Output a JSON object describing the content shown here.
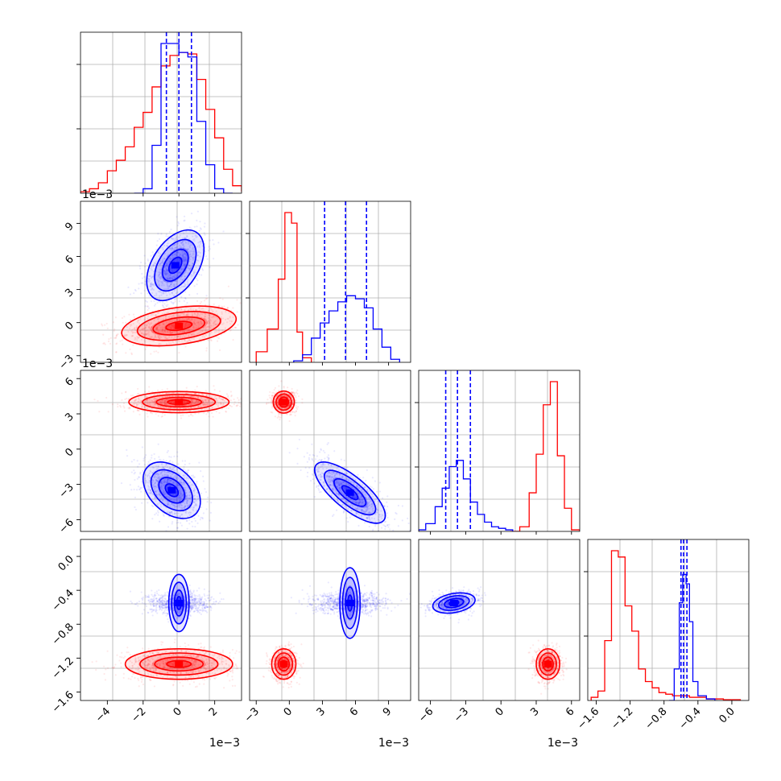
{
  "chart_data": {
    "type": "corner",
    "series": [
      {
        "name": "",
        "color": "#ff0000"
      },
      {
        "name": "",
        "color": "#0000ff"
      }
    ],
    "parameters": [
      {
        "ticks": [
          -4,
          -2,
          0,
          2
        ],
        "tick_labels": [
          "−4",
          "−2",
          "0",
          "2"
        ],
        "range": [
          -5.5,
          3.5
        ],
        "multiplier": "1e−3"
      },
      {
        "ticks": [
          -3,
          0,
          3,
          6,
          9
        ],
        "tick_labels": [
          "−3",
          "0",
          "3",
          "6",
          "9"
        ],
        "range": [
          -3.6,
          11.0
        ],
        "multiplier": "1e−3"
      },
      {
        "ticks": [
          -6,
          -3,
          0,
          3,
          6
        ],
        "tick_labels": [
          "−6",
          "−3",
          "0",
          "3",
          "6"
        ],
        "range": [
          -7.0,
          6.7
        ],
        "multiplier": "1e−3"
      },
      {
        "ticks": [
          -1.6,
          -1.2,
          -0.8,
          -0.4,
          0.0
        ],
        "tick_labels": [
          "−1.6",
          "−1.2",
          "−0.8",
          "−0.4",
          "0.0"
        ],
        "range": [
          -1.7,
          0.2
        ],
        "multiplier": ""
      }
    ],
    "marginals": [
      {
        "param": 0,
        "quantile_lines": {
          "color": "#0000ff",
          "values": [
            -0.7,
            0.0,
            0.7
          ]
        },
        "red": {
          "edges": [
            -5.5,
            -5.0,
            -4.5,
            -4.0,
            -3.5,
            -3.0,
            -2.5,
            -2.0,
            -1.5,
            -1.0,
            -0.5,
            0.0,
            0.5,
            1.0,
            1.5,
            2.0,
            2.5,
            3.0,
            3.5
          ],
          "counts": [
            0.01,
            0.03,
            0.07,
            0.15,
            0.22,
            0.31,
            0.44,
            0.54,
            0.71,
            0.85,
            0.92,
            0.94,
            0.93,
            0.76,
            0.56,
            0.37,
            0.16,
            0.05,
            0.01
          ]
        },
        "blue": {
          "edges": [
            -2.5,
            -2.0,
            -1.5,
            -1.0,
            -0.5,
            0.0,
            0.5,
            1.0,
            1.5,
            2.0,
            2.5,
            3.0
          ],
          "counts": [
            0.0,
            0.03,
            0.32,
            1.0,
            1.0,
            0.94,
            0.91,
            0.48,
            0.19,
            0.03,
            0.0
          ]
        }
      },
      {
        "param": 1,
        "quantile_lines": {
          "color": "#0000ff",
          "values": [
            3.2,
            5.1,
            7.0
          ]
        },
        "red": {
          "edges": [
            -3.0,
            -2.0,
            -1.0,
            -0.4,
            0.2,
            0.7,
            1.2,
            2.0
          ],
          "counts": [
            0.07,
            0.22,
            0.55,
            0.99,
            0.92,
            0.2,
            0.03
          ]
        },
        "blue": {
          "edges": [
            0.4,
            1.2,
            2.0,
            2.8,
            3.6,
            4.4,
            5.2,
            6.0,
            6.8,
            7.6,
            8.4,
            9.2,
            10.0
          ],
          "counts": [
            0.01,
            0.05,
            0.16,
            0.26,
            0.34,
            0.4,
            0.44,
            0.42,
            0.36,
            0.22,
            0.1,
            0.02
          ]
        }
      },
      {
        "param": 2,
        "quantile_lines": {
          "color": "#0000ff",
          "values": [
            -4.7,
            -3.7,
            -2.6
          ]
        },
        "red": {
          "edges": [
            0.8,
            1.6,
            2.4,
            3.0,
            3.6,
            4.2,
            4.8,
            5.4,
            6.0,
            6.7
          ],
          "counts": [
            0.0,
            0.03,
            0.25,
            0.5,
            0.82,
            0.97,
            0.49,
            0.15,
            0.01
          ]
        },
        "blue": {
          "edges": [
            -7.0,
            -6.4,
            -5.6,
            -5.0,
            -4.4,
            -3.8,
            -3.2,
            -2.6,
            -2.0,
            -1.4,
            -0.8,
            -0.2,
            0.4,
            1.0
          ],
          "counts": [
            0.01,
            0.05,
            0.16,
            0.28,
            0.42,
            0.46,
            0.34,
            0.19,
            0.11,
            0.06,
            0.03,
            0.02,
            0.01
          ]
        }
      },
      {
        "param": 3,
        "quantile_lines": {
          "color": "#0000ff",
          "values": [
            -0.6,
            -0.57,
            -0.53
          ]
        },
        "red": {
          "edges": [
            -1.66,
            -1.58,
            -1.5,
            -1.42,
            -1.34,
            -1.26,
            -1.18,
            -1.1,
            -1.02,
            -0.94,
            -0.86,
            -0.78,
            -0.7,
            -0.5,
            -0.3,
            -0.1,
            0.1
          ],
          "counts": [
            0.02,
            0.06,
            0.38,
            0.95,
            0.91,
            0.6,
            0.44,
            0.2,
            0.12,
            0.08,
            0.05,
            0.04,
            0.03,
            0.02,
            0.01,
            0.005
          ]
        },
        "blue": {
          "edges": [
            -0.74,
            -0.68,
            -0.62,
            -0.58,
            -0.54,
            -0.5,
            -0.46,
            -0.4,
            -0.3,
            -0.2
          ],
          "counts": [
            0.0,
            0.2,
            0.62,
            0.8,
            0.74,
            0.5,
            0.12,
            0.03,
            0.01
          ]
        }
      }
    ],
    "joint": [
      {
        "x": 0,
        "y": 1,
        "red": {
          "cx": 0.0,
          "cy": -0.3,
          "sx": 1.6,
          "sy": 0.9,
          "rho": 0.35
        },
        "blue": {
          "cx": -0.2,
          "cy": 5.2,
          "sx": 0.8,
          "sy": 1.6,
          "rho": 0.45
        }
      },
      {
        "x": 0,
        "y": 2,
        "red": {
          "cx": 0.0,
          "cy": 4.0,
          "sx": 1.4,
          "sy": 0.45,
          "rho": 0.0
        },
        "blue": {
          "cx": -0.4,
          "cy": -3.5,
          "sx": 0.8,
          "sy": 1.2,
          "rho": -0.4
        }
      },
      {
        "x": 0,
        "y": 3,
        "red": {
          "cx": 0.0,
          "cy": -1.27,
          "sx": 1.5,
          "sy": 0.09,
          "rho": 0.0
        },
        "blue": {
          "cx": 0.0,
          "cy": -0.55,
          "sx": 0.8,
          "sy": 0.06,
          "rho": 0.0
        }
      },
      {
        "x": 1,
        "y": 2,
        "red": {
          "cx": -0.5,
          "cy": 4.0,
          "sx": 0.5,
          "sy": 0.45,
          "rho": 0.0
        },
        "blue": {
          "cx": 5.5,
          "cy": -3.7,
          "sx": 1.6,
          "sy": 1.3,
          "rho": -0.75
        }
      },
      {
        "x": 1,
        "y": 3,
        "red": {
          "cx": -0.5,
          "cy": -1.27,
          "sx": 0.55,
          "sy": 0.09,
          "rho": 0.0
        },
        "blue": {
          "cx": 5.5,
          "cy": -0.55,
          "sx": 1.6,
          "sy": 0.06,
          "rho": 0.0
        }
      },
      {
        "x": 2,
        "y": 3,
        "red": {
          "cx": 4.0,
          "cy": -1.27,
          "sx": 0.5,
          "sy": 0.09,
          "rho": 0.0
        },
        "blue": {
          "cx": -4.0,
          "cy": -0.55,
          "sx": 0.9,
          "sy": 0.06,
          "rho": 0.3
        }
      }
    ],
    "grid": true,
    "legend": ""
  }
}
